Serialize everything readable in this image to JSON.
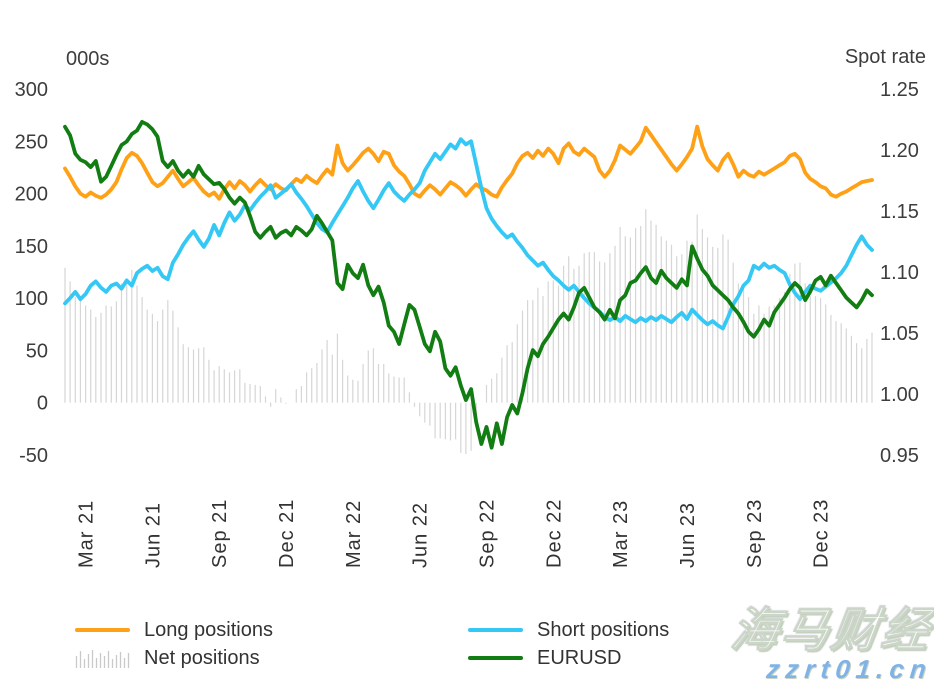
{
  "chart": {
    "left_axis": {
      "title": "000s",
      "ticks": [
        300,
        250,
        200,
        150,
        100,
        50,
        0,
        -50
      ],
      "min": -50,
      "max": 300
    },
    "right_axis": {
      "title": "Spot rate",
      "ticks": [
        "1.25",
        "1.20",
        "1.15",
        "1.10",
        "1.05",
        "1.00",
        "0.95"
      ],
      "min": 0.95,
      "max": 1.25
    },
    "x_axis": {
      "tick_labels": [
        "Mar 21",
        "Jun 21",
        "Sep 21",
        "Dec 21",
        "Mar 22",
        "Jun 22",
        "Sep 22",
        "Dec 22",
        "Mar 23",
        "Jun 23",
        "Sep 23",
        "Dec 23"
      ],
      "tick_weeks": [
        4,
        17,
        30,
        43,
        56,
        69,
        82,
        95,
        108,
        121,
        134,
        147
      ],
      "total_weeks": 157
    },
    "text_color": "#3d3d3d"
  },
  "chart_data": {
    "type": "line+bar",
    "x_unit": "weeks (Feb 2021 - Feb 2024, weekly)",
    "grid": "off",
    "legend_position": "bottom",
    "series": [
      {
        "key": "long",
        "name": "Long positions",
        "type": "line",
        "axis": "left",
        "color": "#FFA117",
        "values": [
          224,
          216,
          207,
          200,
          197,
          201,
          198,
          196,
          199,
          204,
          211,
          223,
          234,
          239,
          236,
          229,
          220,
          211,
          207,
          210,
          216,
          222,
          214,
          207,
          211,
          215,
          208,
          202,
          198,
          201,
          195,
          204,
          211,
          205,
          212,
          208,
          202,
          208,
          213,
          208,
          204,
          209,
          205,
          203,
          209,
          214,
          211,
          217,
          213,
          210,
          217,
          223,
          218,
          246,
          229,
          222,
          227,
          233,
          239,
          243,
          238,
          231,
          240,
          238,
          227,
          221,
          217,
          209,
          200,
          197,
          203,
          208,
          204,
          199,
          205,
          211,
          208,
          204,
          198,
          204,
          209,
          205,
          203,
          199,
          197,
          206,
          213,
          219,
          229,
          236,
          239,
          234,
          241,
          236,
          243,
          238,
          229,
          243,
          248,
          240,
          237,
          243,
          239,
          235,
          222,
          216,
          222,
          232,
          246,
          242,
          238,
          244,
          250,
          263,
          256,
          249,
          242,
          235,
          228,
          222,
          228,
          235,
          243,
          264,
          245,
          233,
          227,
          222,
          232,
          238,
          228,
          216,
          222,
          218,
          216,
          221,
          218,
          221,
          224,
          227,
          230,
          236,
          238,
          233,
          220,
          214,
          211,
          207,
          205,
          199,
          197,
          200,
          202,
          205,
          208,
          211,
          212,
          213
        ]
      },
      {
        "key": "short",
        "name": "Short positions",
        "type": "line",
        "axis": "left",
        "color": "#35C8F5",
        "values": [
          95,
          100,
          106,
          99,
          104,
          112,
          116,
          110,
          106,
          112,
          114,
          109,
          117,
          112,
          124,
          128,
          131,
          126,
          129,
          121,
          118,
          134,
          142,
          151,
          158,
          164,
          156,
          149,
          157,
          170,
          160,
          172,
          182,
          174,
          180,
          189,
          184,
          191,
          197,
          202,
          208,
          196,
          200,
          204,
          209,
          201,
          195,
          188,
          180,
          172,
          166,
          163,
          172,
          180,
          188,
          196,
          205,
          212,
          202,
          193,
          186,
          194,
          203,
          210,
          202,
          197,
          193,
          199,
          204,
          210,
          222,
          230,
          238,
          233,
          240,
          247,
          243,
          252,
          247,
          250,
          228,
          205,
          186,
          176,
          169,
          163,
          158,
          161,
          154,
          148,
          141,
          136,
          131,
          134,
          127,
          121,
          117,
          112,
          108,
          112,
          106,
          100,
          95,
          91,
          87,
          82,
          79,
          82,
          78,
          83,
          80,
          77,
          81,
          78,
          82,
          79,
          83,
          80,
          77,
          82,
          86,
          80,
          89,
          84,
          79,
          75,
          78,
          74,
          71,
          82,
          94,
          102,
          112,
          117,
          131,
          128,
          133,
          129,
          131,
          127,
          124,
          113,
          105,
          99,
          106,
          112,
          109,
          107,
          111,
          115,
          119,
          124,
          131,
          141,
          151,
          159,
          151,
          146
        ]
      },
      {
        "key": "net",
        "name": "Net positions",
        "type": "bar",
        "axis": "left",
        "color": "#D6D6D6",
        "derived": "long minus short per week"
      },
      {
        "key": "eurusd",
        "name": "EURUSD",
        "type": "line",
        "axis": "right",
        "color": "#127D12",
        "values": [
          1.219,
          1.212,
          1.197,
          1.192,
          1.19,
          1.186,
          1.191,
          1.174,
          1.178,
          1.187,
          1.196,
          1.204,
          1.207,
          1.213,
          1.216,
          1.223,
          1.221,
          1.217,
          1.211,
          1.191,
          1.186,
          1.191,
          1.183,
          1.178,
          1.183,
          1.178,
          1.187,
          1.18,
          1.176,
          1.172,
          1.173,
          1.168,
          1.161,
          1.156,
          1.161,
          1.157,
          1.146,
          1.133,
          1.128,
          1.133,
          1.137,
          1.128,
          1.132,
          1.134,
          1.13,
          1.137,
          1.134,
          1.13,
          1.135,
          1.146,
          1.14,
          1.133,
          1.126,
          1.091,
          1.086,
          1.106,
          1.099,
          1.095,
          1.106,
          1.089,
          1.081,
          1.088,
          1.075,
          1.056,
          1.051,
          1.041,
          1.057,
          1.073,
          1.069,
          1.055,
          1.041,
          1.035,
          1.051,
          1.043,
          1.021,
          1.015,
          1.022,
          1.007,
          0.995,
          1.004,
          0.977,
          0.959,
          0.973,
          0.956,
          0.976,
          0.959,
          0.981,
          0.991,
          0.984,
          1.001,
          1.021,
          1.036,
          1.031,
          1.041,
          1.047,
          1.054,
          1.061,
          1.066,
          1.061,
          1.071,
          1.083,
          1.087,
          1.079,
          1.071,
          1.067,
          1.061,
          1.069,
          1.062,
          1.077,
          1.081,
          1.091,
          1.093,
          1.099,
          1.104,
          1.095,
          1.091,
          1.101,
          1.095,
          1.091,
          1.087,
          1.094,
          1.089,
          1.121,
          1.111,
          1.102,
          1.097,
          1.089,
          1.085,
          1.081,
          1.077,
          1.071,
          1.066,
          1.059,
          1.051,
          1.047,
          1.053,
          1.061,
          1.056,
          1.067,
          1.073,
          1.079,
          1.086,
          1.091,
          1.087,
          1.077,
          1.084,
          1.093,
          1.096,
          1.089,
          1.097,
          1.091,
          1.085,
          1.079,
          1.075,
          1.071,
          1.077,
          1.085,
          1.081
        ]
      }
    ]
  },
  "legend": {
    "items": [
      {
        "key": "long",
        "label": "Long positions",
        "color": "#FFA117",
        "swatch": "line"
      },
      {
        "key": "short",
        "label": "Short positions",
        "color": "#35C8F5",
        "swatch": "line"
      },
      {
        "key": "net",
        "label": "Net positions",
        "color": "#C9C9C9",
        "swatch": "bars"
      },
      {
        "key": "eurusd",
        "label": "EURUSD",
        "color": "#127D12",
        "swatch": "line"
      }
    ],
    "net_icon_bar_heights": [
      12,
      17,
      9,
      14,
      18,
      10,
      15,
      12,
      17,
      9,
      13,
      16,
      10,
      15
    ]
  },
  "watermark": {
    "line1": "海马财经",
    "line2": "zzrt01.cn",
    "line1_color": "#ffffff",
    "line2_color": "#7fb3e6"
  }
}
